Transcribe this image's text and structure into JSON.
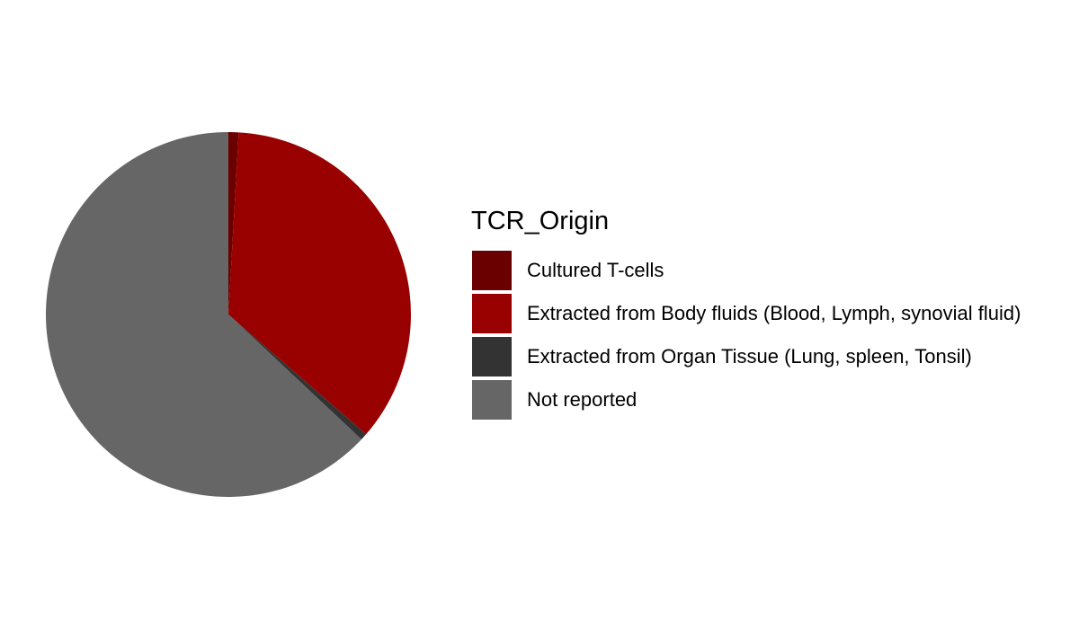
{
  "chart_data": {
    "type": "pie",
    "legend_title": "TCR_Origin",
    "legend_position": "right",
    "start": "12 o'clock",
    "direction": "clockwise",
    "slices": [
      {
        "label": "Cultured T-cells",
        "value": 0.9,
        "color": "#6B0000"
      },
      {
        "label": "Extracted from Body fluids (Blood, Lymph, synovial fluid)",
        "value": 35.5,
        "color": "#990000"
      },
      {
        "label": "Extracted from Organ Tissue (Lung, spleen, Tonsil)",
        "value": 0.6,
        "color": "#333333"
      },
      {
        "label": "Not reported",
        "value": 63.0,
        "color": "#666666"
      }
    ]
  }
}
